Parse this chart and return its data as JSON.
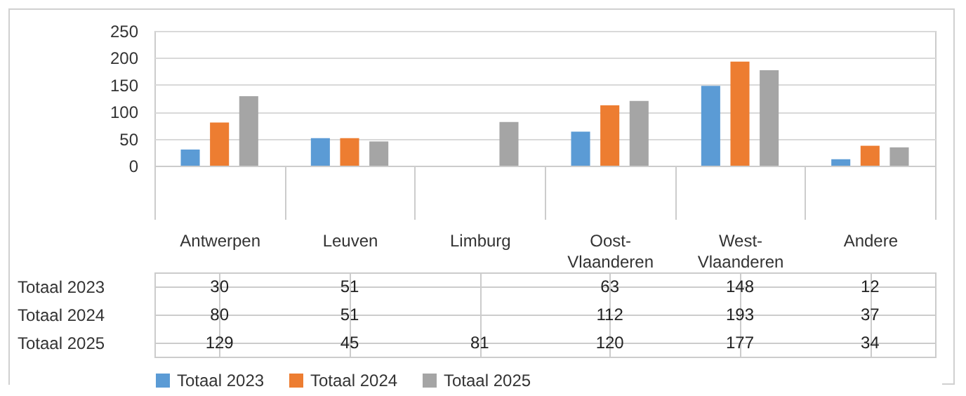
{
  "chart_data": {
    "type": "bar",
    "categories": [
      "Antwerpen",
      "Leuven",
      "Limburg",
      "Oost-Vlaanderen",
      "West-Vlaanderen",
      "Andere"
    ],
    "series": [
      {
        "name": "Totaal 2023",
        "color": "#5b9bd5",
        "values": [
          30,
          51,
          null,
          63,
          148,
          12
        ]
      },
      {
        "name": "Totaal 2024",
        "color": "#ed7d31",
        "values": [
          80,
          51,
          null,
          112,
          193,
          37
        ]
      },
      {
        "name": "Totaal 2025",
        "color": "#a5a5a5",
        "values": [
          129,
          45,
          81,
          120,
          177,
          34
        ]
      }
    ],
    "ylim": [
      0,
      250
    ],
    "yticks": [
      0,
      50,
      100,
      150,
      200,
      250
    ],
    "grid": "y",
    "legend": "bottom",
    "data_labels": true
  }
}
